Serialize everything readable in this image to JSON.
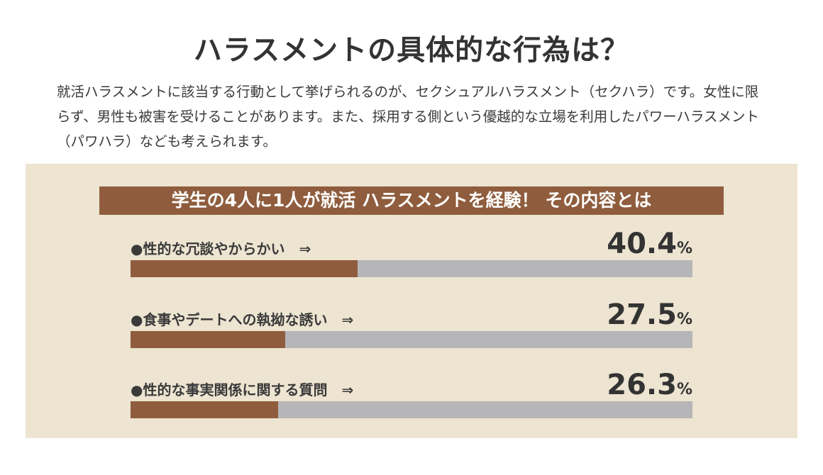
{
  "header": {
    "title": "ハラスメントの具体的な行為は？",
    "intro": "就活ハラスメントに該当する行動として挙げられるのが、セクシュアルハラスメント（セクハラ）です。女性に限らず、男性も被害を受けることがあります。また、採用する側という優越的な立場を利用したパワーハラスメント（パワハラ）なども考えられます。"
  },
  "chart_data": {
    "type": "bar",
    "orientation": "horizontal",
    "title": "学生の4人に1人が就活 ハラスメントを経験！ その内容とは",
    "categories": [
      "●性的な冗談やからかい　⇒",
      "●食事やデートへの執拗な誘い　⇒",
      "●性的な事実関係に関する質問　⇒"
    ],
    "values": [
      40.4,
      27.5,
      26.3
    ],
    "value_labels": [
      "40.4",
      "27.5",
      "26.3"
    ],
    "unit": "%",
    "xlim": [
      0,
      100
    ],
    "colors": {
      "bar": "#8f5d3d",
      "track": "#b6b6b8",
      "panel": "#ede4d1",
      "banner": "#8f5d3d"
    }
  }
}
